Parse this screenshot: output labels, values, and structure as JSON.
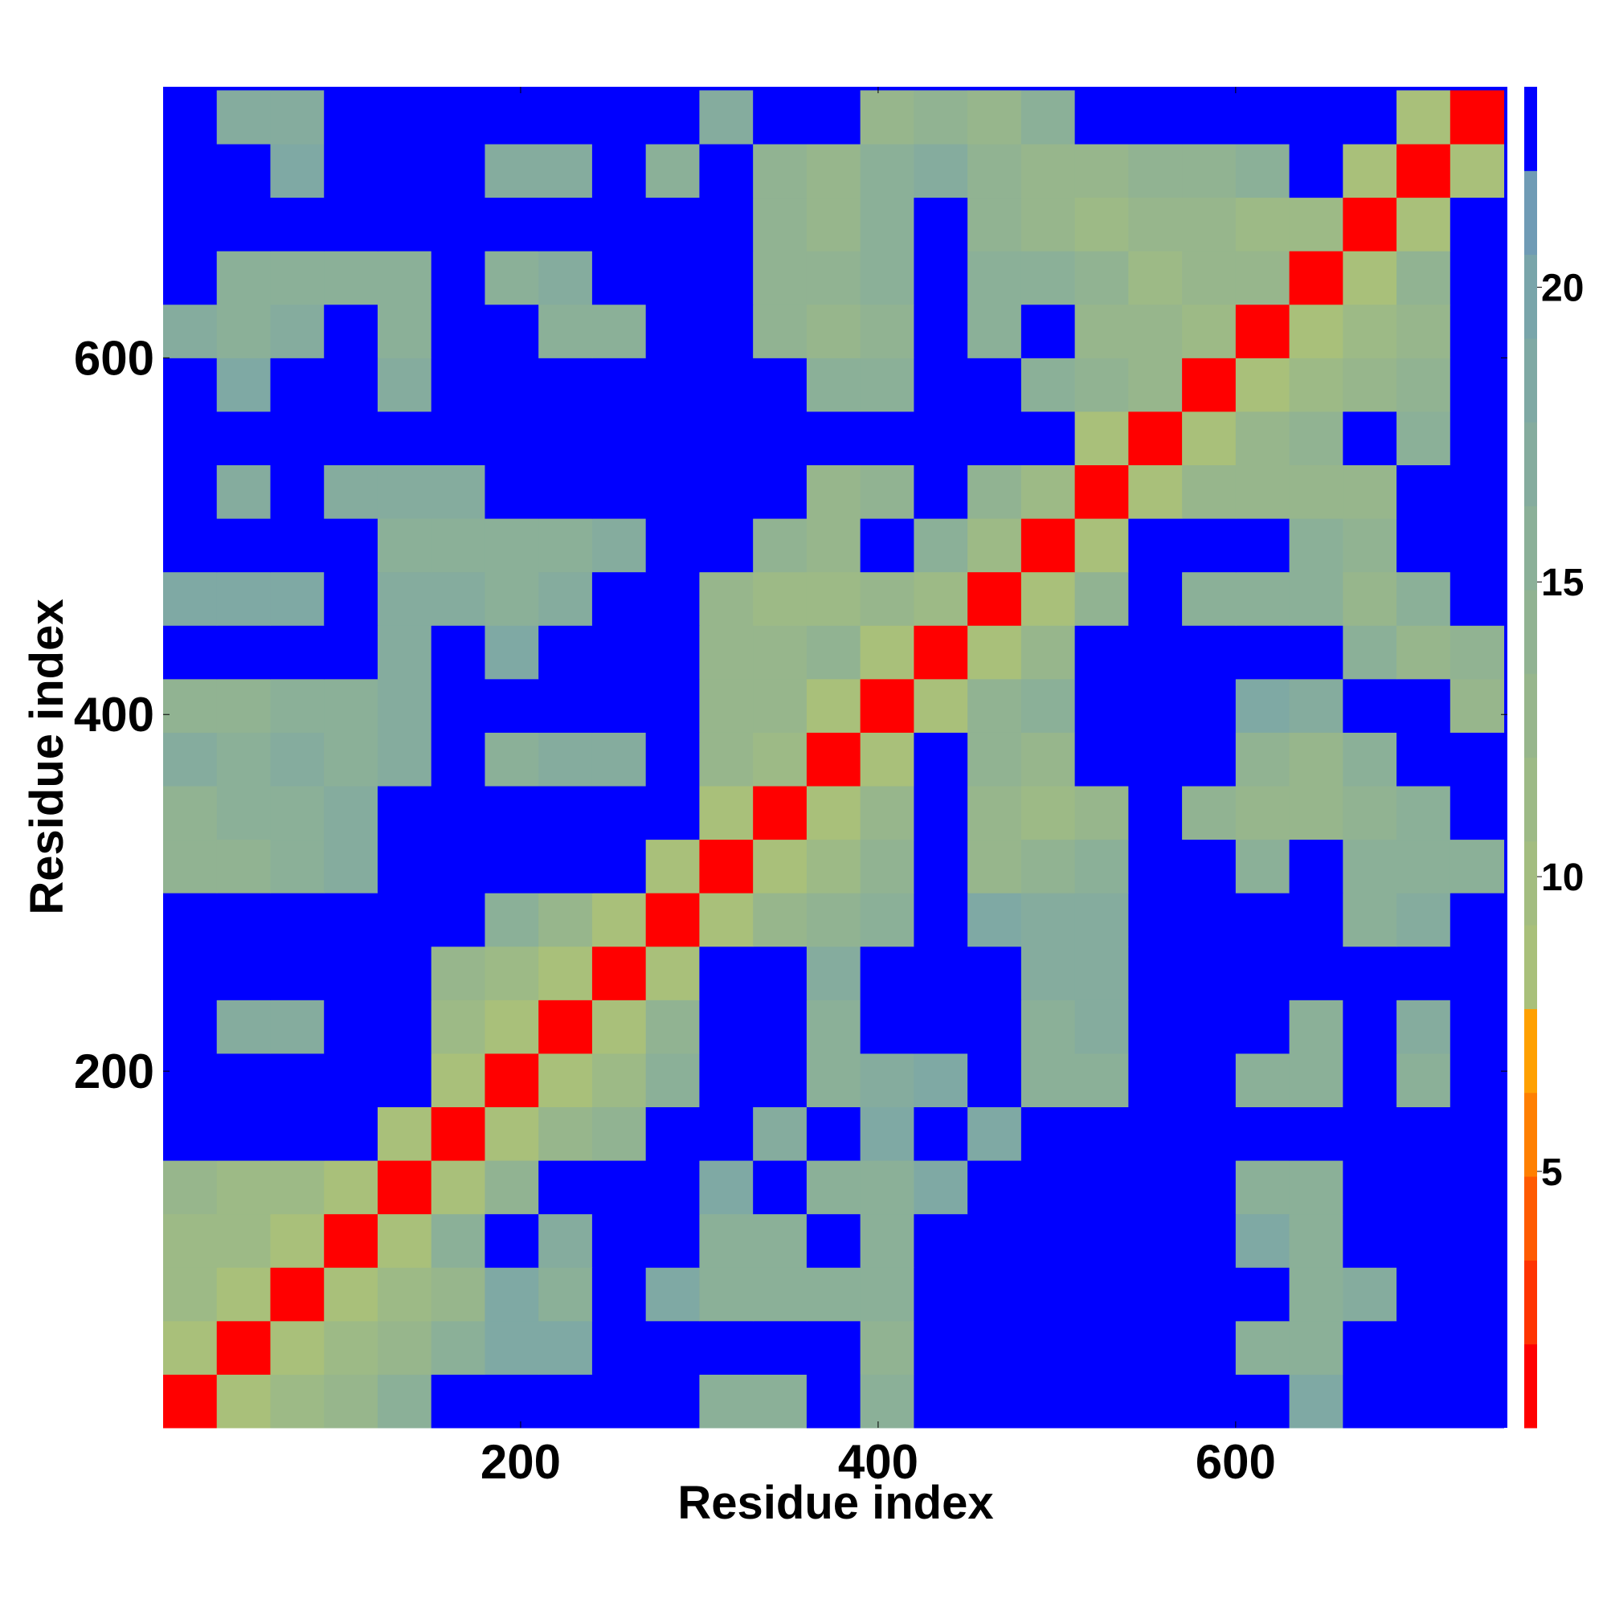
{
  "chart_data": {
    "type": "heatmap",
    "xlabel": "Residue index",
    "ylabel": "Residue index",
    "xlim": [
      0,
      752
    ],
    "ylim": [
      0,
      752
    ],
    "xticks": [
      200,
      400,
      600
    ],
    "yticks": [
      200,
      400,
      600
    ],
    "xbins": [
      0,
      30,
      60,
      90,
      120,
      150,
      180,
      210,
      240,
      270,
      300,
      330,
      360,
      390,
      420,
      450,
      480,
      510,
      540,
      570,
      600,
      630,
      660,
      690,
      720,
      750
    ],
    "ybins": [
      0,
      30,
      60,
      90,
      120,
      150,
      180,
      210,
      240,
      270,
      300,
      330,
      360,
      390,
      420,
      450,
      480,
      510,
      540,
      570,
      600,
      630,
      660,
      690,
      720,
      750
    ],
    "clim": [
      0.65,
      23.4
    ],
    "cticks": [
      5,
      10,
      15,
      20
    ],
    "colors": [
      "#ff0000",
      "#ff3300",
      "#ff5a00",
      "#ff7f00",
      "#ffa000",
      "#a9c07a",
      "#a3bd80",
      "#9dba86",
      "#97b68c",
      "#91b392",
      "#8bb098",
      "#85ac9e",
      "#7fa9a4",
      "#79a5aa",
      "#6f9bb5",
      "#0000ff"
    ],
    "z": [
      [
        2,
        8,
        12,
        13,
        15,
        23,
        23,
        23,
        23,
        23,
        16,
        16,
        23,
        15,
        23,
        23,
        23,
        23,
        23,
        23,
        23,
        18,
        23,
        23,
        23
      ],
      [
        8,
        2,
        8,
        12,
        13,
        16,
        18,
        18,
        23,
        23,
        23,
        23,
        23,
        14,
        23,
        23,
        23,
        23,
        23,
        23,
        16,
        16,
        23,
        23,
        23
      ],
      [
        12,
        8,
        2,
        8,
        12,
        13,
        18,
        16,
        23,
        18,
        16,
        16,
        16,
        15,
        23,
        23,
        23,
        23,
        23,
        23,
        23,
        16,
        17,
        23,
        23
      ],
      [
        12,
        12,
        8,
        2,
        8,
        16,
        23,
        17,
        23,
        23,
        16,
        16,
        23,
        16,
        23,
        23,
        23,
        23,
        23,
        23,
        18,
        15,
        23,
        23,
        23
      ],
      [
        13,
        12,
        12,
        8,
        2,
        8,
        14,
        23,
        23,
        23,
        18,
        23,
        16,
        16,
        18,
        23,
        23,
        23,
        23,
        23,
        16,
        15,
        23,
        23,
        23
      ],
      [
        23,
        23,
        23,
        23,
        8,
        2,
        8,
        13,
        14,
        23,
        23,
        17,
        23,
        18,
        23,
        18,
        23,
        23,
        23,
        23,
        23,
        23,
        23,
        23,
        23
      ],
      [
        23,
        23,
        23,
        23,
        23,
        8,
        2,
        8,
        12,
        15,
        23,
        23,
        16,
        17,
        18,
        23,
        16,
        16,
        23,
        23,
        16,
        15,
        23,
        16,
        23
      ],
      [
        23,
        17,
        17,
        23,
        23,
        12,
        8,
        2,
        8,
        14,
        23,
        23,
        16,
        23,
        23,
        23,
        16,
        17,
        23,
        23,
        23,
        16,
        23,
        17,
        23
      ],
      [
        23,
        23,
        23,
        23,
        23,
        13,
        12,
        8,
        2,
        8,
        23,
        23,
        17,
        23,
        23,
        23,
        17,
        17,
        23,
        23,
        23,
        23,
        23,
        23,
        23
      ],
      [
        23,
        23,
        23,
        23,
        23,
        23,
        15,
        13,
        8,
        2,
        8,
        13,
        14,
        16,
        23,
        18,
        17,
        17,
        23,
        23,
        23,
        23,
        15,
        17,
        23
      ],
      [
        14,
        14,
        16,
        17,
        23,
        23,
        23,
        23,
        23,
        8,
        2,
        8,
        12,
        14,
        23,
        13,
        14,
        15,
        23,
        23,
        16,
        23,
        15,
        15,
        16
      ],
      [
        14,
        15,
        15,
        17,
        23,
        23,
        23,
        23,
        23,
        23,
        8,
        2,
        8,
        13,
        23,
        13,
        12,
        13,
        23,
        14,
        13,
        13,
        14,
        16,
        23
      ],
      [
        17,
        16,
        17,
        16,
        17,
        23,
        16,
        17,
        17,
        23,
        13,
        12,
        2,
        8,
        23,
        14,
        13,
        23,
        23,
        23,
        14,
        13,
        15,
        23,
        23
      ],
      [
        14,
        14,
        16,
        16,
        17,
        23,
        23,
        23,
        23,
        23,
        13,
        13,
        8,
        2,
        8,
        14,
        15,
        23,
        23,
        23,
        18,
        17,
        23,
        23,
        13
      ],
      [
        23,
        23,
        23,
        23,
        17,
        23,
        18,
        23,
        23,
        23,
        13,
        13,
        14,
        8,
        2,
        8,
        13,
        23,
        23,
        23,
        23,
        23,
        15,
        13,
        14
      ],
      [
        18,
        18,
        18,
        23,
        17,
        17,
        16,
        17,
        23,
        23,
        13,
        12,
        12,
        13,
        12,
        2,
        8,
        14,
        23,
        16,
        16,
        15,
        13,
        16,
        23
      ],
      [
        23,
        23,
        23,
        23,
        16,
        16,
        16,
        16,
        17,
        23,
        23,
        14,
        13,
        23,
        15,
        12,
        2,
        8,
        23,
        23,
        23,
        15,
        14,
        23,
        23
      ],
      [
        23,
        17,
        23,
        17,
        17,
        17,
        23,
        23,
        23,
        23,
        23,
        23,
        13,
        14,
        23,
        14,
        12,
        2,
        8,
        13,
        13,
        13,
        13,
        23,
        23
      ],
      [
        23,
        23,
        23,
        23,
        23,
        23,
        23,
        23,
        23,
        23,
        23,
        23,
        23,
        23,
        23,
        23,
        23,
        8,
        2,
        8,
        13,
        14,
        23,
        15,
        23
      ],
      [
        23,
        18,
        23,
        23,
        17,
        23,
        23,
        23,
        23,
        23,
        23,
        23,
        16,
        16,
        23,
        23,
        16,
        14,
        13,
        2,
        8,
        12,
        13,
        14,
        23
      ],
      [
        17,
        16,
        17,
        23,
        16,
        23,
        23,
        16,
        16,
        23,
        23,
        14,
        13,
        14,
        23,
        16,
        23,
        13,
        13,
        12,
        2,
        8,
        12,
        13,
        23
      ],
      [
        23,
        16,
        15,
        16,
        16,
        23,
        16,
        17,
        23,
        23,
        23,
        14,
        14,
        15,
        23,
        15,
        15,
        14,
        12,
        13,
        13,
        2,
        8,
        14,
        23
      ],
      [
        23,
        23,
        23,
        23,
        23,
        23,
        23,
        23,
        23,
        23,
        23,
        14,
        13,
        16,
        23,
        14,
        13,
        12,
        13,
        13,
        12,
        12,
        2,
        8,
        23
      ],
      [
        23,
        23,
        18,
        23,
        23,
        23,
        17,
        17,
        23,
        16,
        23,
        14,
        13,
        15,
        17,
        14,
        13,
        13,
        14,
        14,
        15,
        23,
        8,
        2,
        8
      ],
      [
        23,
        17,
        17,
        23,
        23,
        23,
        23,
        23,
        23,
        23,
        17,
        23,
        23,
        13,
        14,
        13,
        15,
        23,
        23,
        23,
        23,
        23,
        23,
        8,
        2
      ]
    ]
  }
}
